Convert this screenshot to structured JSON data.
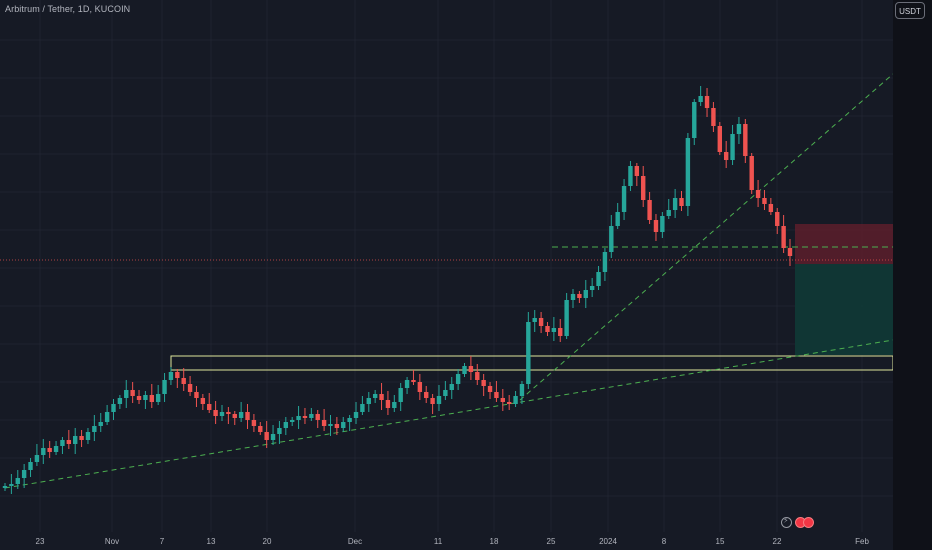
{
  "header": {
    "symbol_title": "Arbitrum / Tether, 1D, KUCOIN"
  },
  "price_axis": {
    "currency_button": "USDT"
  },
  "colors": {
    "background": "#161a25",
    "grid": "#1f2330",
    "bull": "#26a69a",
    "bear": "#ef5350",
    "trendline": "#4caf50",
    "zone_border": "#dfe59a",
    "risk_zone": "#5c1f2b",
    "reward_zone": "#103a36"
  },
  "x_axis": {
    "labels": [
      "23",
      "Nov",
      "7",
      "13",
      "20",
      "Dec",
      "11",
      "18",
      "25",
      "2024",
      "8",
      "15",
      "22",
      "Feb"
    ]
  },
  "events": {
    "icons": [
      "lightning-icon",
      "earnings-icon",
      "dividend-icon"
    ]
  }
}
